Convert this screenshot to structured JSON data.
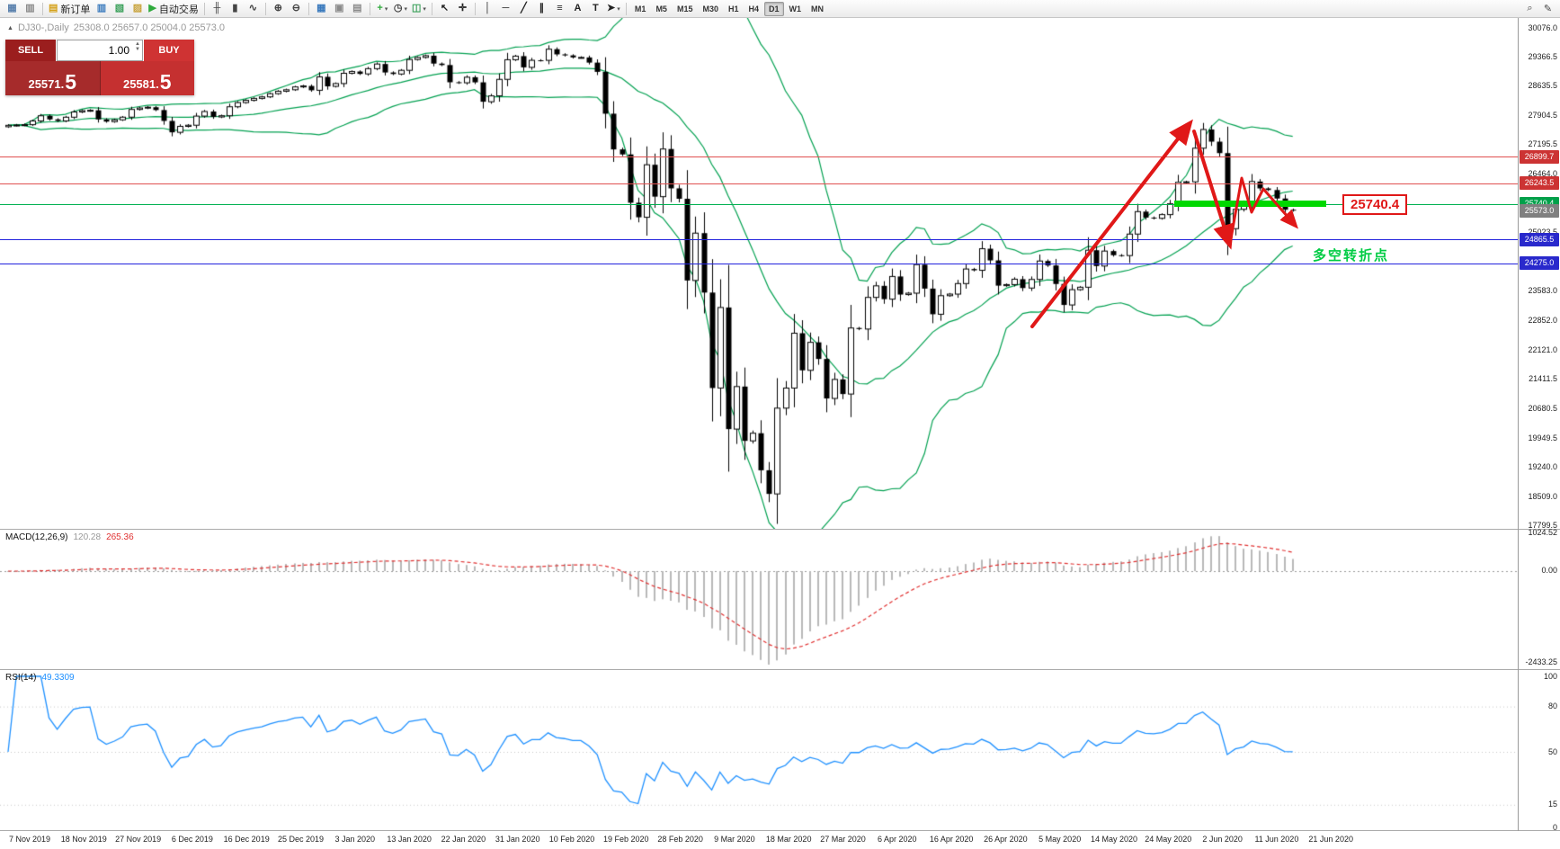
{
  "toolbar": {
    "groups": [
      {
        "items": [
          {
            "name": "new-chart-icon",
            "glyph": "▦",
            "color": "#5a81ad"
          },
          {
            "name": "chart-profiles-icon",
            "glyph": "▥",
            "color": "#8a8a8a"
          }
        ]
      },
      {
        "items": [
          {
            "name": "new-order-button",
            "glyph": "▤",
            "color": "#d4a017",
            "label": "新订单"
          },
          {
            "name": "market-watch-icon",
            "glyph": "▥",
            "color": "#3a7abd"
          },
          {
            "name": "data-window-icon",
            "glyph": "▧",
            "color": "#3aa05a"
          },
          {
            "name": "navigator-icon",
            "glyph": "▨",
            "color": "#c8a23a"
          },
          {
            "name": "autotrading-button",
            "glyph": "▶",
            "color": "#2faa3c",
            "label": "自动交易"
          }
        ]
      },
      {
        "items": [
          {
            "name": "bar-chart-icon",
            "glyph": "╫",
            "color": "#444444"
          },
          {
            "name": "candlestick-chart-icon",
            "glyph": "▮",
            "color": "#444444"
          },
          {
            "name": "line-chart-icon",
            "glyph": "∿",
            "color": "#444444"
          }
        ]
      },
      {
        "items": [
          {
            "name": "zoom-in-icon",
            "glyph": "⊕",
            "color": "#444444"
          },
          {
            "name": "zoom-out-icon",
            "glyph": "⊖",
            "color": "#444444"
          }
        ]
      },
      {
        "items": [
          {
            "name": "tile-windows-icon",
            "glyph": "▦",
            "color": "#3a7abd"
          },
          {
            "name": "cascade-windows-icon",
            "glyph": "▣",
            "color": "#8a8a8a"
          },
          {
            "name": "arrange-windows-icon",
            "glyph": "▤",
            "color": "#8a8a8a"
          }
        ]
      },
      {
        "items": [
          {
            "name": "indicators-icon",
            "glyph": "+",
            "color": "#2faa3c",
            "dropdown": true
          },
          {
            "name": "periods-icon",
            "glyph": "◷",
            "color": "#444444",
            "dropdown": true
          },
          {
            "name": "templates-icon",
            "glyph": "◫",
            "color": "#3aa05a",
            "dropdown": true
          }
        ]
      },
      {
        "items": [
          {
            "name": "cursor-icon",
            "glyph": "↖",
            "color": "#222222"
          },
          {
            "name": "crosshair-icon",
            "glyph": "✛",
            "color": "#222222"
          }
        ]
      },
      {
        "items": [
          {
            "name": "vertical-line-icon",
            "glyph": "│",
            "color": "#222222"
          },
          {
            "name": "horizontal-line-icon",
            "glyph": "─",
            "color": "#222222"
          },
          {
            "name": "trendline-icon",
            "glyph": "╱",
            "color": "#222222"
          },
          {
            "name": "channel-icon",
            "glyph": "∥",
            "color": "#222222"
          },
          {
            "name": "fibonacci-icon",
            "glyph": "≡",
            "color": "#222222"
          },
          {
            "name": "text-icon",
            "glyph": "A",
            "color": "#222222"
          },
          {
            "name": "text-label-icon",
            "glyph": "T",
            "color": "#222222"
          },
          {
            "name": "arrows-icon",
            "glyph": "➤",
            "color": "#222222",
            "dropdown": true
          }
        ]
      }
    ],
    "timeframes": [
      "M1",
      "M5",
      "M15",
      "M30",
      "H1",
      "H4",
      "D1",
      "W1",
      "MN"
    ],
    "active_timeframe": "D1",
    "right_icons": [
      {
        "name": "search-icon",
        "glyph": "⌕",
        "color": "#444444"
      },
      {
        "name": "edit-icon",
        "glyph": "✎",
        "color": "#444444"
      }
    ]
  },
  "chart_header": {
    "symbol_title": "DJ30-,Daily",
    "ohlc": "25308.0 25657.0 25004.0 25573.0"
  },
  "trade_panel": {
    "sell_label": "SELL",
    "buy_label": "BUY",
    "volume": "1.00",
    "sell_price": "25571.",
    "sell_price_big": "5",
    "buy_price": "25581.",
    "buy_price_big": "5"
  },
  "price_axis_ticks": [
    "30076.0",
    "29366.5",
    "28635.5",
    "27904.5",
    "27195.5",
    "26464.0",
    "25753.0",
    "25023.5",
    "24292.5",
    "23583.0",
    "22852.0",
    "22121.0",
    "21411.5",
    "20680.5",
    "19949.5",
    "19240.0",
    "18509.0",
    "17799.5"
  ],
  "levels": [
    {
      "price": 26899.7,
      "label": "26899.7",
      "line": "#e05050",
      "box": "#cc3333"
    },
    {
      "price": 26243.5,
      "label": "26243.5",
      "line": "#e05050",
      "box": "#cc3333"
    },
    {
      "price": 25740.4,
      "label": "25740.4",
      "line": "#00b050",
      "box": "#00a04a"
    },
    {
      "price": 25573.0,
      "label": "25573.0",
      "line": "none",
      "box": "#808080"
    },
    {
      "price": 24865.5,
      "label": "24865.5",
      "line": "#2222dd",
      "box": "#2929cc"
    },
    {
      "price": 24275.0,
      "label": "24275.0",
      "line": "#2222dd",
      "box": "#2929cc"
    }
  ],
  "annotations": {
    "highlight_label": "25740.4",
    "pivot_text": "多空转折点"
  },
  "macd_panel": {
    "name": "MACD(12,26,9)",
    "value_main": "120.28",
    "value_signal": "265.36",
    "axis_top": "1024.52",
    "axis_zero": "0.00",
    "axis_bottom": "-2433.25"
  },
  "rsi_panel": {
    "name": "RSI(14)",
    "value": "49.3309",
    "axis": [
      "100",
      "80",
      "50",
      "15",
      "0"
    ],
    "axis_values": [
      100,
      80,
      50,
      15,
      0
    ],
    "level_values": [
      80,
      50,
      15
    ]
  },
  "time_axis": [
    "7 Nov 2019",
    "18 Nov 2019",
    "27 Nov 2019",
    "6 Dec 2019",
    "16 Dec 2019",
    "25 Dec 2019",
    "3 Jan 2020",
    "13 Jan 2020",
    "22 Jan 2020",
    "31 Jan 2020",
    "10 Feb 2020",
    "19 Feb 2020",
    "28 Feb 2020",
    "9 Mar 2020",
    "18 Mar 2020",
    "27 Mar 2020",
    "6 Apr 2020",
    "16 Apr 2020",
    "26 Apr 2020",
    "5 May 2020",
    "14 May 2020",
    "24 May 2020",
    "2 Jun 2020",
    "11 Jun 2020",
    "21 Jun 2020"
  ],
  "chart_data": {
    "type": "candlestick",
    "symbol": "DJ30-",
    "period": "Daily",
    "ohlc_header": {
      "open": 25308.0,
      "high": 25657.0,
      "low": 25004.0,
      "close": 25573.0
    },
    "y_axis_range": [
      17799.5,
      30076.0
    ],
    "horizontal_levels": [
      26899.7,
      26243.5,
      25740.4,
      25573.0,
      24865.5,
      24275.0
    ],
    "closes": [
      27675,
      27681,
      27691,
      27783,
      27910,
      27821,
      27783,
      27875,
      28004,
      28036,
      28045,
      27821,
      27766,
      27810,
      27876,
      28066,
      28102,
      28121,
      28051,
      27783,
      27502,
      27649,
      27677,
      27902,
      28015,
      27881,
      27911,
      28132,
      28235,
      28290,
      28338,
      28376,
      28455,
      28515,
      28551,
      28621,
      28645,
      28538,
      28869,
      28635,
      28704,
      28957,
      29001,
      28942,
      29071,
      29186,
      28977,
      28939,
      29030,
      29297,
      29348,
      29391,
      29196,
      29160,
      28736,
      28723,
      28860,
      28734,
      28256,
      28400,
      28807,
      29291,
      29380,
      29103,
      29277,
      29276,
      29551,
      29423,
      29398,
      29348,
      29348,
      29220,
      28992,
      27961,
      27081,
      26958,
      25767,
      25409,
      26703,
      25917,
      27091,
      26121,
      25865,
      23851,
      25018,
      23553,
      21201,
      23186,
      20189,
      21237,
      19899,
      20087,
      19174,
      18592,
      20705,
      21200,
      22552,
      21637,
      22327,
      21917,
      20944,
      21413,
      21053,
      22680,
      22654,
      23434,
      23719,
      23391,
      23950,
      23504,
      23538,
      24242,
      23651,
      23019,
      23476,
      23515,
      23775,
      24134,
      24102,
      24634,
      24346,
      23724,
      23750,
      23883,
      23665,
      23876,
      24331,
      24222,
      23765,
      23248,
      23625,
      23685,
      24597,
      24207,
      24576,
      24474,
      24465,
      24995,
      25548,
      25401,
      25383,
      25475,
      25743,
      26270,
      26282,
      27111,
      27572,
      27272,
      26990,
      25128,
      25605,
      25763,
      26290,
      26120,
      26080,
      25871,
      25595,
      25573
    ],
    "indicators": [
      {
        "name": "Bollinger Bands",
        "period": 20,
        "deviation": 2,
        "color": "#00a050"
      },
      {
        "name": "MACD",
        "fast": 12,
        "slow": 26,
        "signal": 9,
        "last_main": 120.28,
        "last_signal": 265.36
      },
      {
        "name": "RSI",
        "period": 14,
        "last": 49.3309
      }
    ]
  }
}
